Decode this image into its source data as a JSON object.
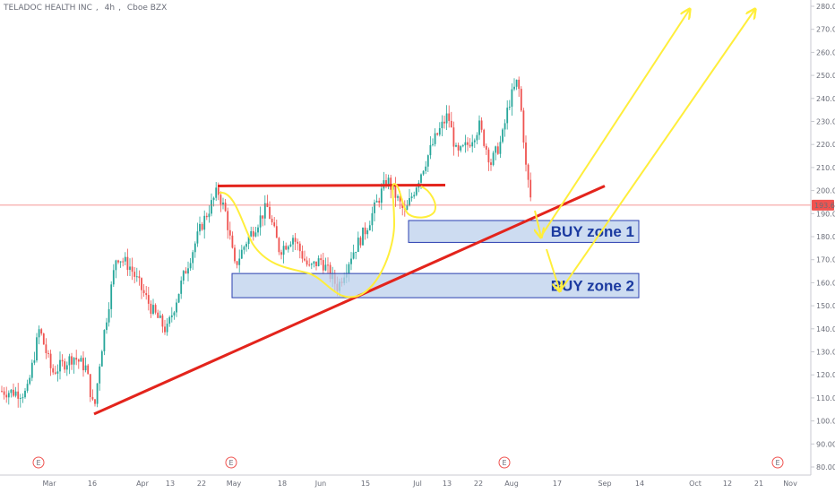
{
  "header": {
    "symbol_name": "TELADOC HEALTH INC",
    "interval": "4h",
    "exchange": "Cboe BZX"
  },
  "price_scale": {
    "labels": [
      "80.00",
      "90.00",
      "100.00",
      "110.00",
      "120.00",
      "130.00",
      "140.00",
      "150.00",
      "160.00",
      "170.00",
      "180.00",
      "190.00",
      "200.00",
      "210.00",
      "220.00",
      "230.00",
      "240.00",
      "250.00",
      "260.00",
      "270.00",
      "280.00"
    ],
    "current_price_label": "193.66"
  },
  "time_scale": {
    "labels": [
      "Mar",
      "16",
      "Apr",
      "13",
      "22",
      "May",
      "18",
      "Jun",
      "15",
      "Jul",
      "13",
      "22",
      "Aug",
      "17",
      "Sep",
      "14",
      "Oct",
      "12",
      "21",
      "Nov"
    ]
  },
  "earnings_markers": [
    "E",
    "E",
    "E",
    "E"
  ],
  "annotations": {
    "zone1_label": "BUY zone 1",
    "zone2_label": "BUY zone 2"
  },
  "colors": {
    "up_candle": "#26a69a",
    "down_candle": "#ef5350",
    "trendline": "#e3241c",
    "drawing": "#ffee3b",
    "zone_fill": "#bcd0ec",
    "zone_border": "#2a3fb0",
    "zone_text": "#1b3aa0",
    "price_tag": "#ef5350"
  },
  "chart_data": {
    "type": "candlestick",
    "ylim": [
      78,
      283
    ],
    "current_price": 193.66,
    "anchors": [
      {
        "x": 0,
        "y": 113
      },
      {
        "x": 30,
        "y": 112
      },
      {
        "x": 44,
        "y": 140
      },
      {
        "x": 58,
        "y": 121
      },
      {
        "x": 82,
        "y": 128
      },
      {
        "x": 96,
        "y": 123
      },
      {
        "x": 105,
        "y": 104
      },
      {
        "x": 112,
        "y": 128
      },
      {
        "x": 130,
        "y": 172
      },
      {
        "x": 145,
        "y": 167
      },
      {
        "x": 170,
        "y": 148
      },
      {
        "x": 186,
        "y": 139
      },
      {
        "x": 205,
        "y": 163
      },
      {
        "x": 225,
        "y": 185
      },
      {
        "x": 243,
        "y": 200
      },
      {
        "x": 252,
        "y": 190
      },
      {
        "x": 262,
        "y": 167
      },
      {
        "x": 275,
        "y": 178
      },
      {
        "x": 298,
        "y": 193
      },
      {
        "x": 312,
        "y": 174
      },
      {
        "x": 327,
        "y": 180
      },
      {
        "x": 345,
        "y": 166
      },
      {
        "x": 358,
        "y": 170
      },
      {
        "x": 377,
        "y": 158
      },
      {
        "x": 392,
        "y": 172
      },
      {
        "x": 408,
        "y": 183
      },
      {
        "x": 432,
        "y": 205
      },
      {
        "x": 452,
        "y": 190
      },
      {
        "x": 470,
        "y": 208
      },
      {
        "x": 485,
        "y": 222
      },
      {
        "x": 500,
        "y": 233
      },
      {
        "x": 510,
        "y": 215
      },
      {
        "x": 522,
        "y": 220
      },
      {
        "x": 535,
        "y": 228
      },
      {
        "x": 548,
        "y": 212
      },
      {
        "x": 560,
        "y": 222
      },
      {
        "x": 568,
        "y": 238
      },
      {
        "x": 578,
        "y": 248
      },
      {
        "x": 583,
        "y": 230
      },
      {
        "x": 587,
        "y": 210
      },
      {
        "x": 593,
        "y": 195
      }
    ],
    "resistance_level": 202,
    "buy_zone_1": [
      177.5,
      187
    ],
    "buy_zone_2": [
      153.5,
      164
    ],
    "trendline": {
      "from": [
        105,
        103
      ],
      "to": [
        675,
        202
      ]
    }
  }
}
